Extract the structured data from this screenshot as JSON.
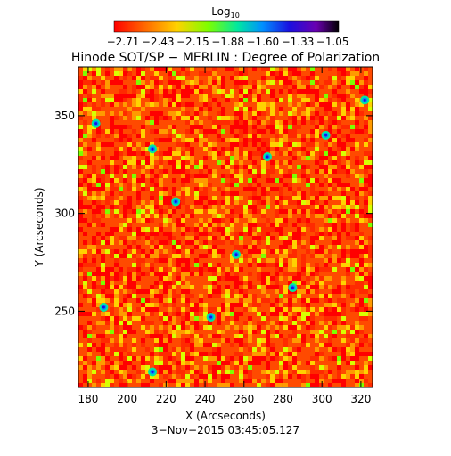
{
  "colorbar": {
    "label_base": "Log",
    "label_sub": "10",
    "tick_labels": [
      "−2.71",
      "−2.43",
      "−2.15",
      "−1.88",
      "−1.60",
      "−1.33",
      "−1.05"
    ],
    "min": -2.71,
    "max": -1.05,
    "colormap": "rainbow-reversed (red to violet/black)"
  },
  "title": "Hinode SOT/SP − MERLIN : Degree of Polarization",
  "x_axis": {
    "label": "X (Arcseconds)",
    "range": [
      175,
      326
    ],
    "ticks": [
      180,
      200,
      220,
      240,
      260,
      280,
      300,
      320
    ],
    "tick_labels": [
      "180",
      "200",
      "220",
      "240",
      "260",
      "280",
      "300",
      "320"
    ]
  },
  "y_axis": {
    "label": "Y (Arcseconds)",
    "range": [
      211,
      375
    ],
    "ticks": [
      250,
      300,
      350
    ],
    "tick_labels": [
      "250",
      "300",
      "350"
    ]
  },
  "timestamp": "3−Nov−2015 03:45:05.127",
  "colors": {
    "background": "#ffffff",
    "axis": "#000000",
    "dominant_map": "#ff4a00"
  }
}
